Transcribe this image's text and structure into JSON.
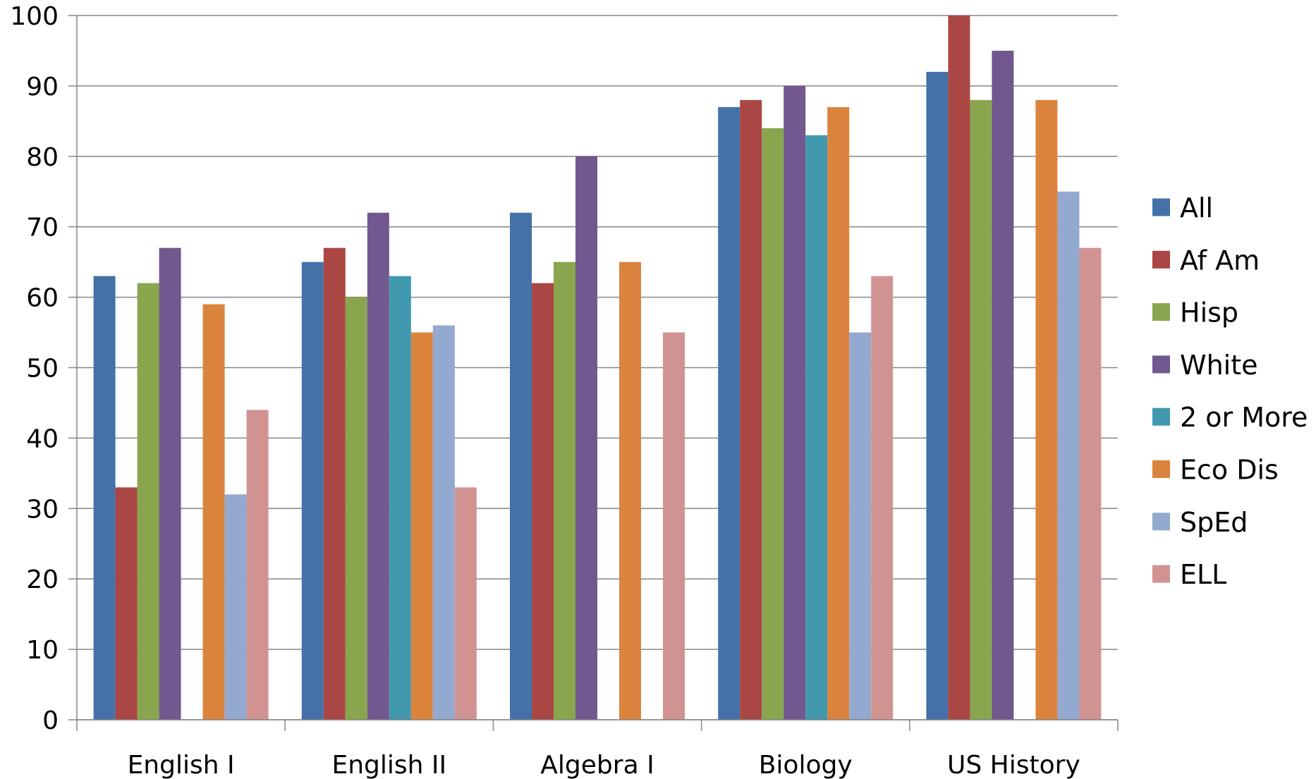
{
  "chart_data": {
    "type": "bar",
    "title": "",
    "xlabel": "",
    "ylabel": "",
    "ylim": [
      0,
      100
    ],
    "yticks": [
      0,
      10,
      20,
      30,
      40,
      50,
      60,
      70,
      80,
      90,
      100
    ],
    "grid": "horizontal",
    "legend_position": "right",
    "categories": [
      "English I",
      "English II",
      "Algebra I",
      "Biology",
      "US History"
    ],
    "series": [
      {
        "name": "All",
        "color": "#4472A8",
        "values": [
          63,
          65,
          72,
          87,
          92
        ]
      },
      {
        "name": "Af Am",
        "color": "#AA4643",
        "values": [
          33,
          67,
          62,
          88,
          100
        ]
      },
      {
        "name": "Hisp",
        "color": "#89A54E",
        "values": [
          62,
          60,
          65,
          84,
          88
        ]
      },
      {
        "name": "White",
        "color": "#71588F",
        "values": [
          67,
          72,
          80,
          90,
          95
        ]
      },
      {
        "name": "2 or More",
        "color": "#4198AF",
        "values": [
          null,
          63,
          null,
          83,
          null
        ]
      },
      {
        "name": "Eco Dis",
        "color": "#DB843D",
        "values": [
          59,
          55,
          65,
          87,
          88
        ]
      },
      {
        "name": "SpEd",
        "color": "#93A9CF",
        "values": [
          32,
          56,
          null,
          55,
          75
        ]
      },
      {
        "name": "ELL",
        "color": "#D19392",
        "values": [
          44,
          33,
          55,
          63,
          67
        ]
      }
    ]
  }
}
